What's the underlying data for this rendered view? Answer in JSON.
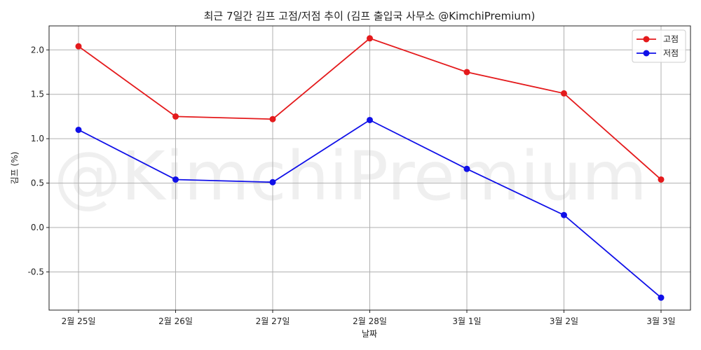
{
  "chart_data": {
    "type": "line",
    "title": "최근 7일간 김프 고점/저점 추이 (김프 출입국 사무소 @KimchiPremium)",
    "xlabel": "날짜",
    "ylabel": "김프 (%)",
    "categories": [
      "2월 25일",
      "2월 26일",
      "2월 27일",
      "2월 28일",
      "3월 1일",
      "3월 2일",
      "3월 3일"
    ],
    "series": [
      {
        "name": "고점",
        "color": "#e41a1c",
        "values": [
          2.04,
          1.25,
          1.22,
          2.13,
          1.75,
          1.51,
          0.54
        ]
      },
      {
        "name": "저점",
        "color": "#1010e8",
        "values": [
          1.1,
          0.54,
          0.51,
          1.21,
          0.66,
          0.14,
          -0.79
        ]
      }
    ],
    "ylim": [
      -0.93,
      2.27
    ],
    "yticks": [
      -0.5,
      0.0,
      0.5,
      1.0,
      1.5,
      2.0
    ],
    "ytick_labels": [
      "-0.5",
      "0.0",
      "0.5",
      "1.0",
      "1.5",
      "2.0"
    ],
    "grid": true,
    "legend_position": "top-right",
    "watermark": "@KimchiPremium"
  }
}
